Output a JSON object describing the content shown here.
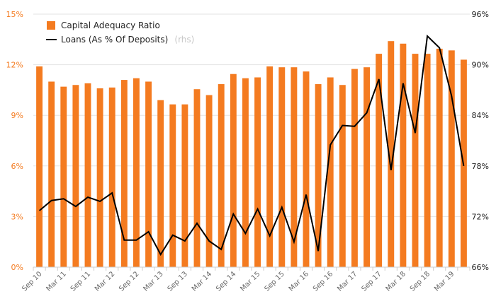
{
  "chart_data": {
    "type": "bar",
    "categories": [
      "Sep 10",
      "Dec 10",
      "Mar 11",
      "Jun 11",
      "Sep 11",
      "Dec 11",
      "Mar 12",
      "Jun 12",
      "Sep 12",
      "Dec 12",
      "Mar 13",
      "Jun 13",
      "Sep 13",
      "Dec 13",
      "Mar 14",
      "Jun 14",
      "Sep 14",
      "Dec 14",
      "Mar 15",
      "Jun 15",
      "Sep 15",
      "Dec 15",
      "Mar 16",
      "Jun 16",
      "Sep 16",
      "Dec 16",
      "Mar 17",
      "Jun 17",
      "Sep 17",
      "Dec 17",
      "Mar 18",
      "Jun 18",
      "Sep 18",
      "Dec 18",
      "Mar 19",
      "Jun 19"
    ],
    "x_tick_labels": [
      "Sep 10",
      "Mar 11",
      "Sep 11",
      "Mar 12",
      "Sep 12",
      "Mar 13",
      "Sep 13",
      "Mar 14",
      "Sep 14",
      "Mar 15",
      "Sep 15",
      "Mar 16",
      "Sep 16",
      "Mar 17",
      "Sep 17",
      "Mar 18",
      "Sep 18",
      "Mar 19"
    ],
    "series": [
      {
        "name": "Capital Adequacy Ratio",
        "kind": "bar",
        "axis": "left",
        "color": "#f47b20",
        "values": [
          11.9,
          11.0,
          10.7,
          10.8,
          10.9,
          10.6,
          10.65,
          11.1,
          11.2,
          11.0,
          9.9,
          9.65,
          9.65,
          10.55,
          10.2,
          10.85,
          11.45,
          11.2,
          11.25,
          11.9,
          11.85,
          11.85,
          11.6,
          10.85,
          11.25,
          10.8,
          11.75,
          11.85,
          12.65,
          13.4,
          13.25,
          12.65,
          12.65,
          12.95,
          12.85,
          12.3
        ]
      },
      {
        "name": "Loans (As % Of Deposits)",
        "name_suffix": "(rhs)",
        "kind": "line",
        "axis": "right",
        "color": "#000000",
        "values": [
          72.7,
          73.9,
          74.1,
          73.2,
          74.3,
          73.8,
          74.8,
          69.2,
          69.2,
          70.2,
          67.5,
          69.8,
          69.1,
          71.2,
          69.1,
          68.1,
          72.3,
          70.0,
          72.9,
          69.7,
          73.1,
          69.0,
          74.6,
          67.9,
          80.5,
          82.8,
          82.7,
          84.3,
          88.3,
          77.5,
          87.8,
          81.9,
          93.4,
          92.0,
          86.3,
          78.0
        ]
      }
    ],
    "y_left": {
      "ticks": [
        "0%",
        "3%",
        "6%",
        "9%",
        "12%",
        "15%"
      ],
      "min": 0,
      "max": 15
    },
    "y_right": {
      "ticks": [
        "66%",
        "72%",
        "78%",
        "84%",
        "90%",
        "96%"
      ],
      "min": 66,
      "max": 96
    },
    "legend": {
      "position": "top-left"
    },
    "grid": true
  }
}
